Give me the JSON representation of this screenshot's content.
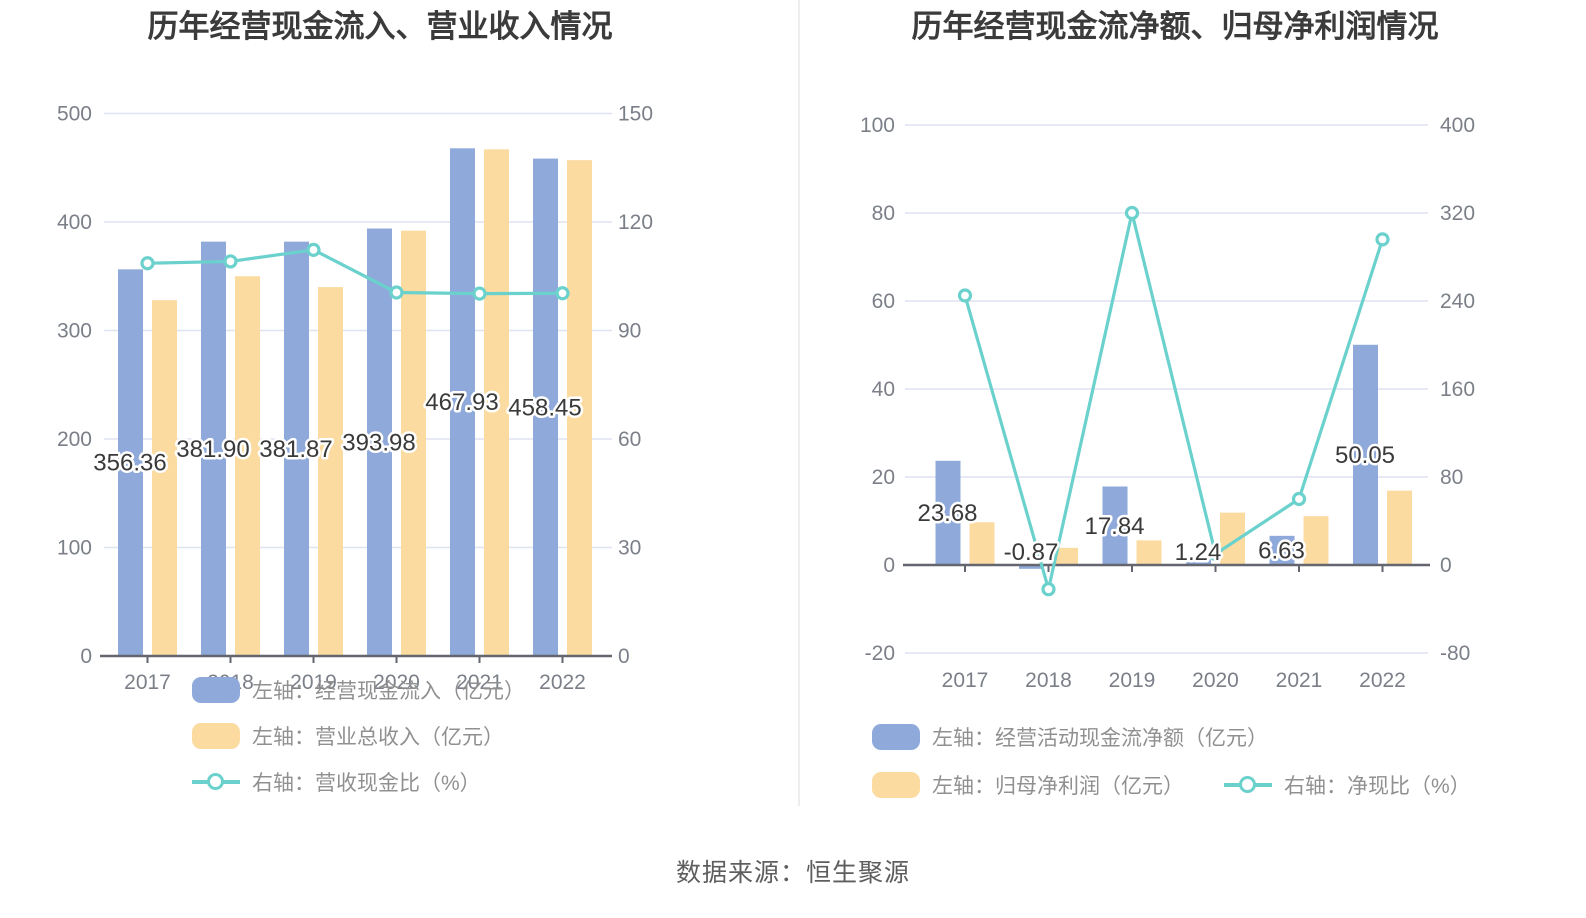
{
  "page": {
    "source_note": "数据来源：恒生聚源"
  },
  "colors": {
    "bar_blue": "#8EA9DA",
    "bar_yellow": "#FCDBA0",
    "line_teal": "#6BD1CD",
    "grid_line": "#DFE4F1",
    "axis_line": "#63666F",
    "tick_label": "#7B7F88",
    "bar_label": "#3A3A3A",
    "legend_text": "#909090",
    "title_text": "#3B3B3B",
    "divider": "#EDEDED",
    "source_text": "#5E5E5E"
  },
  "chart_data": [
    {
      "type": "bar",
      "title": "历年经营现金流入、营业收入情况",
      "categories": [
        "2017",
        "2018",
        "2019",
        "2020",
        "2021",
        "2022"
      ],
      "series": [
        {
          "name": "左轴：经营现金流入（亿元）",
          "type": "bar",
          "axis": "left",
          "color": "bar_blue",
          "values": [
            356.36,
            381.9,
            381.87,
            393.98,
            467.93,
            458.45
          ],
          "data_labels": [
            "356.36",
            "381.90",
            "381.87",
            "393.98",
            "467.93",
            "458.45"
          ]
        },
        {
          "name": "左轴：营业总收入（亿元）",
          "type": "bar",
          "axis": "left",
          "color": "bar_yellow",
          "values": [
            328,
            350,
            340,
            392,
            467,
            457
          ]
        },
        {
          "name": "右轴：营收现金比（%）",
          "type": "line",
          "axis": "right",
          "color": "line_teal",
          "values": [
            108.6,
            109.1,
            112.3,
            100.5,
            100.2,
            100.3
          ]
        }
      ],
      "left_axis": {
        "min": 0,
        "max": 500,
        "ticks": [
          0,
          100,
          200,
          300,
          400,
          500
        ]
      },
      "right_axis": {
        "min": 0,
        "max": 150,
        "ticks": [
          0,
          30,
          60,
          90,
          120,
          150
        ]
      },
      "grid": true,
      "legend_position": "bottom-left"
    },
    {
      "type": "bar",
      "title": "历年经营现金流净额、归母净利润情况",
      "categories": [
        "2017",
        "2018",
        "2019",
        "2020",
        "2021",
        "2022"
      ],
      "series": [
        {
          "name": "左轴：经营活动现金流净额（亿元）",
          "type": "bar",
          "axis": "left",
          "color": "bar_blue",
          "values": [
            23.68,
            -0.87,
            17.84,
            1.24,
            6.63,
            50.05
          ],
          "data_labels": [
            "23.68",
            "-0.87",
            "17.84",
            "1.24",
            "6.63",
            "50.05"
          ]
        },
        {
          "name": "左轴：归母净利润（亿元）",
          "type": "bar",
          "axis": "left",
          "color": "bar_yellow",
          "values": [
            9.7,
            3.9,
            5.6,
            11.9,
            11.1,
            16.9
          ]
        },
        {
          "name": "右轴：净现比（%）",
          "type": "line",
          "axis": "right",
          "color": "line_teal",
          "values": [
            245,
            -22,
            320,
            10,
            60,
            296
          ]
        }
      ],
      "left_axis": {
        "min": -20,
        "max": 100,
        "ticks": [
          -20,
          0,
          20,
          40,
          60,
          80,
          100
        ]
      },
      "right_axis": {
        "min": -80,
        "max": 400,
        "ticks": [
          -80,
          0,
          80,
          160,
          240,
          320,
          400
        ]
      },
      "grid": true,
      "legend_position": "bottom-left"
    }
  ]
}
